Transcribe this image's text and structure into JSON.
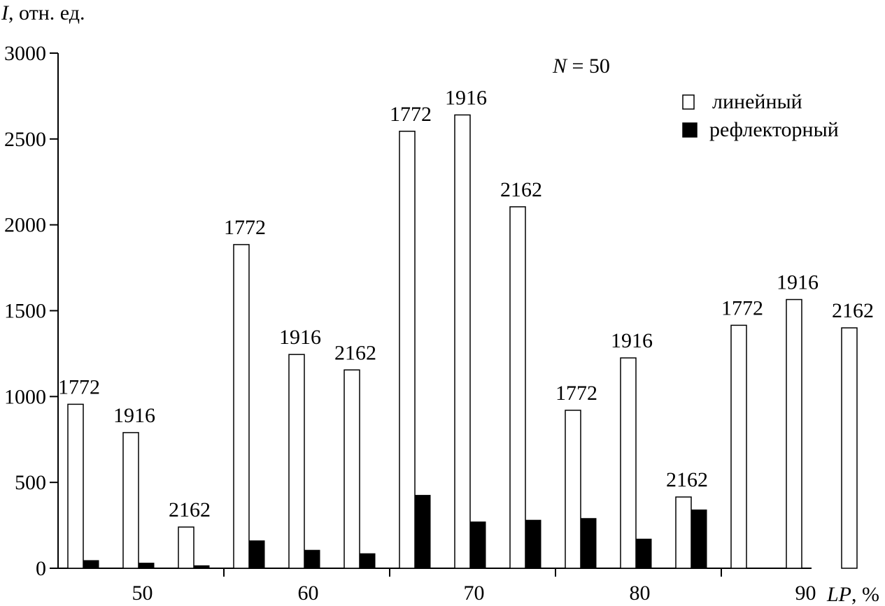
{
  "chart_data": {
    "type": "bar",
    "title": "",
    "ylabel_italic": "I",
    "ylabel_rest": ", отн. ед.",
    "xlabel_italic": "LP",
    "xlabel_rest": ", %",
    "annotation_italic": "N",
    "annotation_rest": " = 50",
    "ylim": [
      0,
      3000
    ],
    "yticks": [
      "0",
      "500",
      "1000",
      "1500",
      "2000",
      "2500",
      "3000"
    ],
    "categories": [
      "50",
      "60",
      "70",
      "80",
      "90"
    ],
    "sub_labels": [
      "1772",
      "1916",
      "2162"
    ],
    "legend": {
      "position": "top-right"
    },
    "series": [
      {
        "name": "линейный",
        "color": "#ffffff",
        "values": [
          [
            955,
            790,
            240
          ],
          [
            1885,
            1245,
            1155
          ],
          [
            2545,
            2640,
            2105
          ],
          [
            920,
            1225,
            415
          ],
          [
            1415,
            1565,
            1400
          ]
        ]
      },
      {
        "name": "рефлекторный",
        "color": "#000000",
        "values": [
          [
            45,
            30,
            15
          ],
          [
            160,
            105,
            85
          ],
          [
            425,
            270,
            280
          ],
          [
            290,
            170,
            340
          ],
          [
            null,
            null,
            null
          ]
        ]
      }
    ]
  }
}
